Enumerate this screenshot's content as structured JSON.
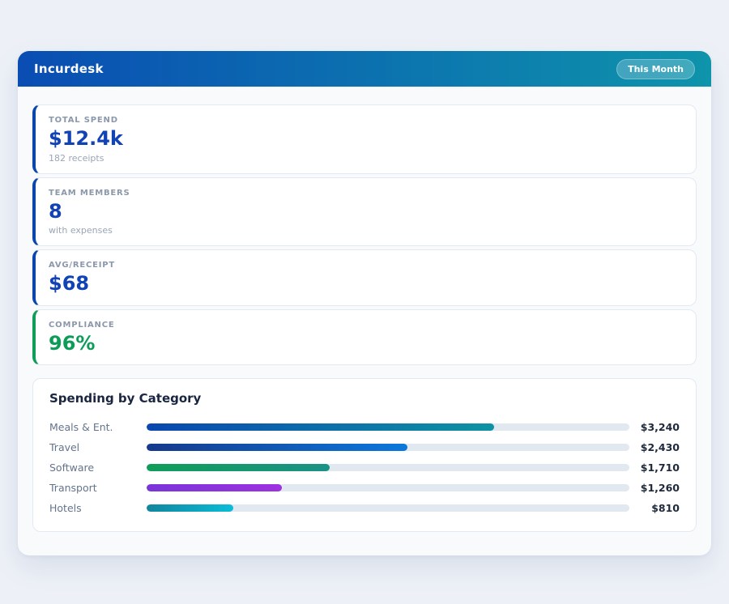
{
  "header": {
    "title": "Incurdesk",
    "period_badge": "This Month"
  },
  "colors": {
    "header_gradient_from": "#0a4db3",
    "header_gradient_to": "#0e94ab",
    "stat_blue": "#1143b5",
    "stat_green": "#0d9c57",
    "bar_track": "#e2e8f0",
    "page_background": "#edf1f7"
  },
  "stats": [
    {
      "label": "TOTAL SPEND",
      "value": "$12.4k",
      "sub": "182 receipts",
      "accent": "#0b46ad",
      "value_color": "#1143b5"
    },
    {
      "label": "TEAM MEMBERS",
      "value": "8",
      "sub": "with expenses",
      "accent": "#0b46ad",
      "value_color": "#1143b5"
    },
    {
      "label": "AVG/RECEIPT",
      "value": "$68",
      "sub": "",
      "accent": "#0b46ad",
      "value_color": "#1143b5"
    },
    {
      "label": "COMPLIANCE",
      "value": "96%",
      "sub": "",
      "accent": "#0f9d58",
      "value_color": "#0d9c57"
    }
  ],
  "chart": {
    "title": "Spending by Category",
    "rows": [
      {
        "label": "Meals & Ent.",
        "value": "$3,240",
        "pct": 72,
        "color_from": "#0a47b0",
        "color_to": "#0d93a3"
      },
      {
        "label": "Travel",
        "value": "$2,430",
        "pct": 54,
        "color_from": "#16398c",
        "color_to": "#0b78dc"
      },
      {
        "label": "Software",
        "value": "$1,710",
        "pct": 38,
        "color_from": "#0f9d58",
        "color_to": "#1b9287"
      },
      {
        "label": "Transport",
        "value": "$1,260",
        "pct": 28,
        "color_from": "#7a35d8",
        "color_to": "#9d32e0"
      },
      {
        "label": "Hotels",
        "value": "$810",
        "pct": 18,
        "color_from": "#10869e",
        "color_to": "#0bbcd8"
      }
    ]
  },
  "chart_data": {
    "type": "bar",
    "title": "Spending by Category",
    "categories": [
      "Meals & Ent.",
      "Travel",
      "Software",
      "Transport",
      "Hotels"
    ],
    "values": [
      3240,
      2430,
      1710,
      1260,
      810
    ],
    "value_labels": [
      "$3,240",
      "$2,430",
      "$1,710",
      "$1,260",
      "$810"
    ],
    "orientation": "horizontal",
    "xlim": [
      0,
      4500
    ],
    "grid": false,
    "legend": false
  }
}
